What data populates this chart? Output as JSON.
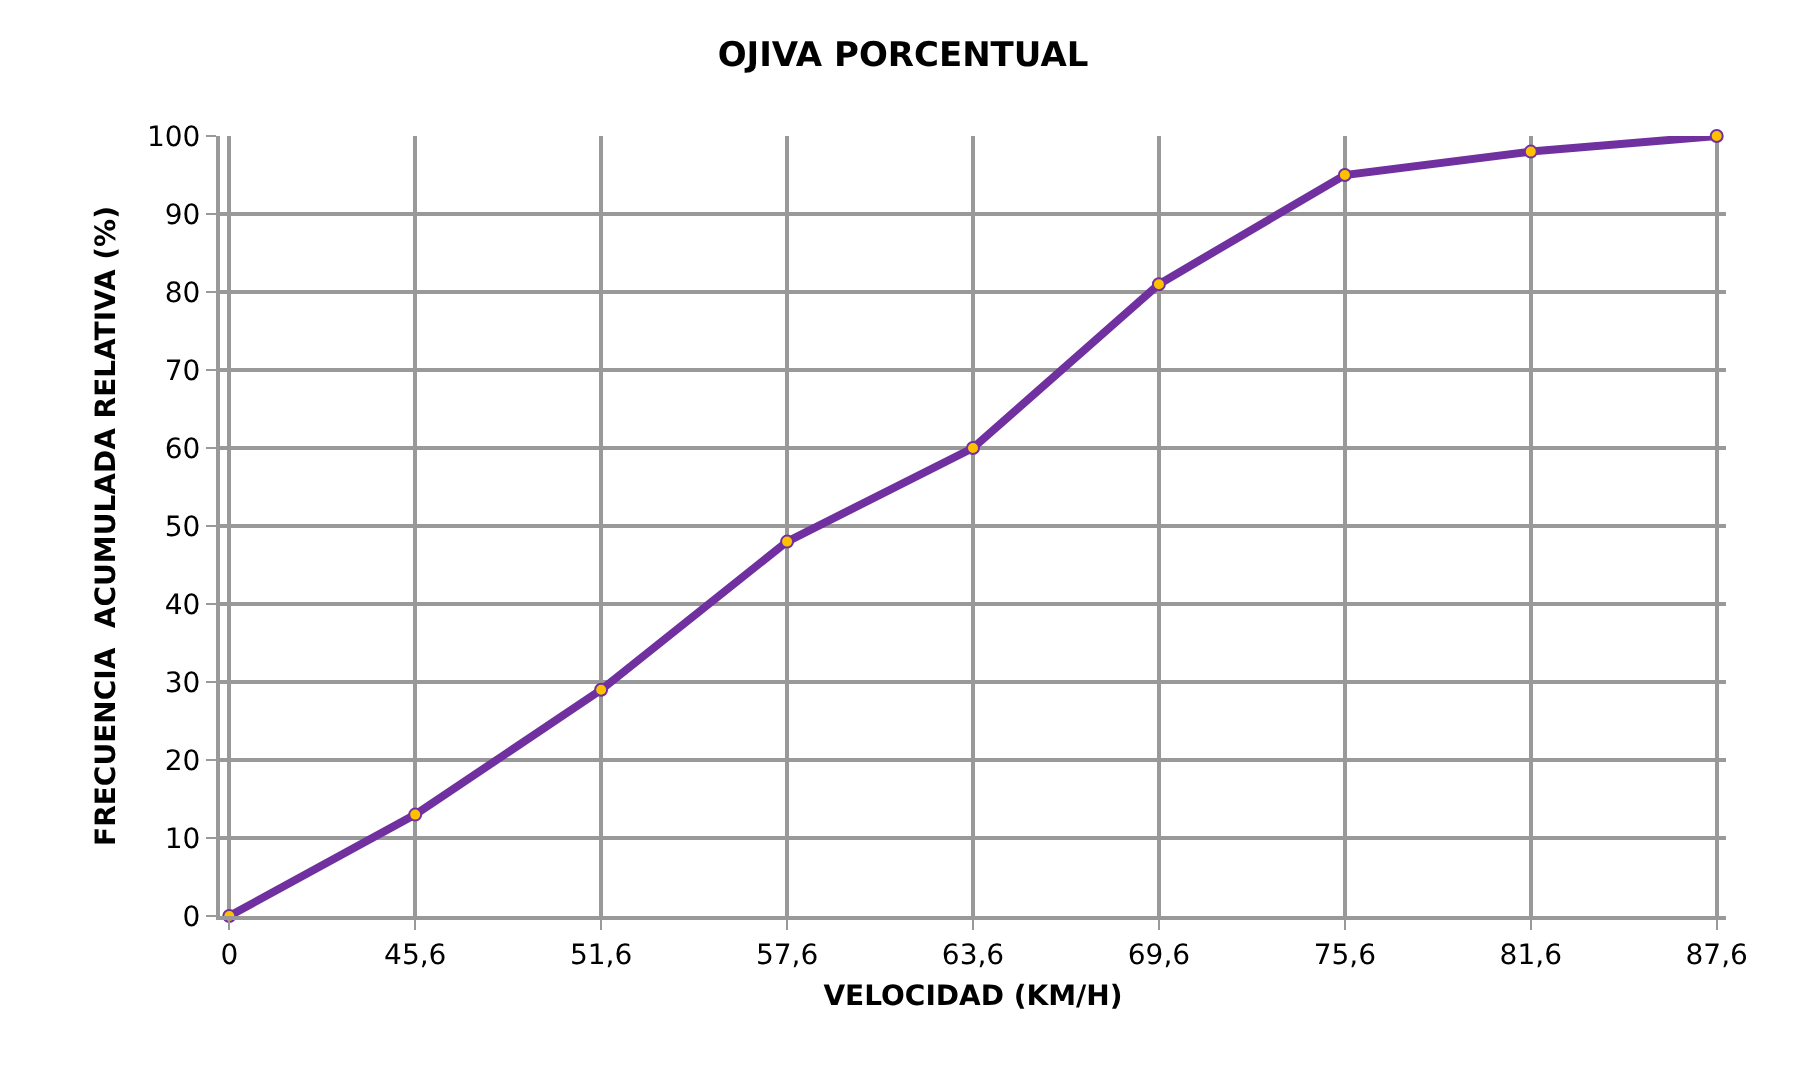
{
  "chart_data": {
    "type": "line",
    "title": "OJIVA PORCENTUAL",
    "xlabel": "VELOCIDAD (KM/H)",
    "ylabel": "FRECUENCIA  ACUMULADA RELATIVA (%)",
    "categories": [
      "0",
      "45,6",
      "51,6",
      "57,6",
      "63,6",
      "69,6",
      "75,6",
      "81,6",
      "87,6"
    ],
    "series": [
      {
        "color": "#7030a0",
        "values": [
          0,
          13,
          29,
          48,
          60,
          81,
          95,
          98,
          100
        ]
      }
    ],
    "ylim": [
      0,
      100
    ],
    "yticks": [
      0,
      10,
      20,
      30,
      40,
      50,
      60,
      70,
      80,
      90,
      100
    ],
    "grid": true,
    "marker": "circle",
    "line_style": "solid"
  }
}
